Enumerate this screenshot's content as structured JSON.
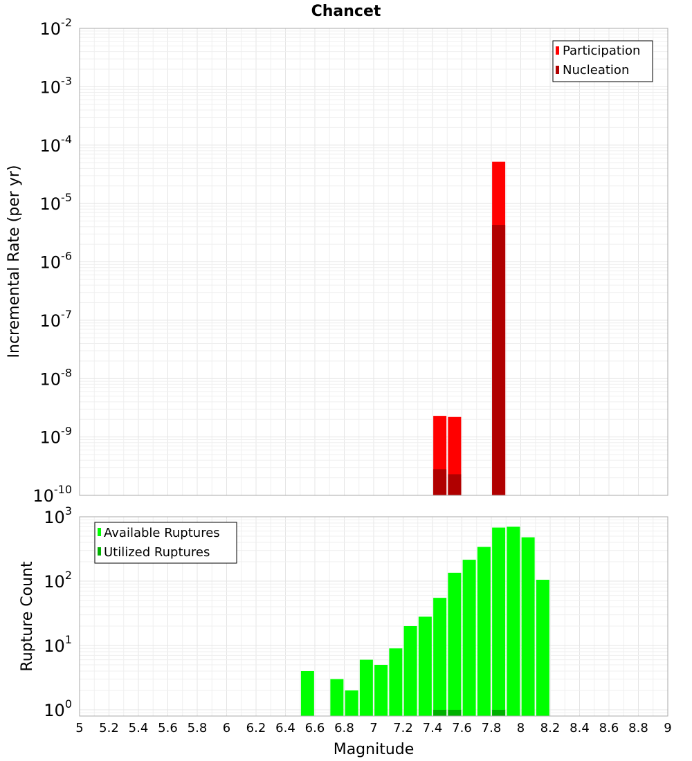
{
  "chart_data": [
    {
      "type": "bar",
      "title": "Chancet",
      "ylabel": "Incremental Rate (per yr)",
      "yscale": "log",
      "ylim": [
        1e-10,
        0.01
      ],
      "xlim": [
        5,
        9
      ],
      "grid": true,
      "legend_position": "top-right",
      "series": [
        {
          "name": "Participation",
          "color": "#ff0000",
          "x": [
            7.45,
            7.55,
            7.85
          ],
          "values": [
            2.3e-09,
            2.2e-09,
            5.2e-05
          ]
        },
        {
          "name": "Nucleation",
          "color": "#b00000",
          "x": [
            7.45,
            7.55,
            7.85
          ],
          "values": [
            2.8e-10,
            2.3e-10,
            4.3e-06
          ]
        }
      ],
      "y_ticks": [
        {
          "base": "10",
          "exp": "-2"
        },
        {
          "base": "10",
          "exp": "-3"
        },
        {
          "base": "10",
          "exp": "-4"
        },
        {
          "base": "10",
          "exp": "-5"
        },
        {
          "base": "10",
          "exp": "-6"
        },
        {
          "base": "10",
          "exp": "-7"
        },
        {
          "base": "10",
          "exp": "-8"
        },
        {
          "base": "10",
          "exp": "-9"
        },
        {
          "base": "10",
          "exp": "-10"
        }
      ]
    },
    {
      "type": "bar",
      "xlabel": "Magnitude",
      "ylabel": "Rupture Count",
      "yscale": "log",
      "ylim": [
        0.8,
        1000
      ],
      "xlim": [
        5,
        9
      ],
      "grid": true,
      "legend_position": "top-left",
      "series": [
        {
          "name": "Available Ruptures",
          "color": "#00ff00",
          "x": [
            6.55,
            6.75,
            6.85,
            6.95,
            7.05,
            7.15,
            7.25,
            7.35,
            7.45,
            7.55,
            7.65,
            7.75,
            7.85,
            7.95,
            8.05,
            8.15
          ],
          "values": [
            4,
            3,
            2,
            6,
            5,
            9,
            20,
            28,
            55,
            135,
            215,
            340,
            680,
            700,
            480,
            105
          ]
        },
        {
          "name": "Utilized Ruptures",
          "color": "#00b000",
          "x": [
            7.45,
            7.55,
            7.85
          ],
          "values": [
            1,
            1,
            1
          ]
        }
      ],
      "y_ticks": [
        {
          "base": "10",
          "exp": "3"
        },
        {
          "base": "10",
          "exp": "2"
        },
        {
          "base": "10",
          "exp": "1"
        },
        {
          "base": "10",
          "exp": "0"
        }
      ],
      "x_ticks": [
        "5",
        "5.2",
        "5.4",
        "5.6",
        "5.8",
        "6",
        "6.2",
        "6.4",
        "6.6",
        "6.8",
        "7",
        "7.2",
        "7.4",
        "7.6",
        "7.8",
        "8",
        "8.2",
        "8.4",
        "8.6",
        "8.8",
        "9"
      ]
    }
  ]
}
